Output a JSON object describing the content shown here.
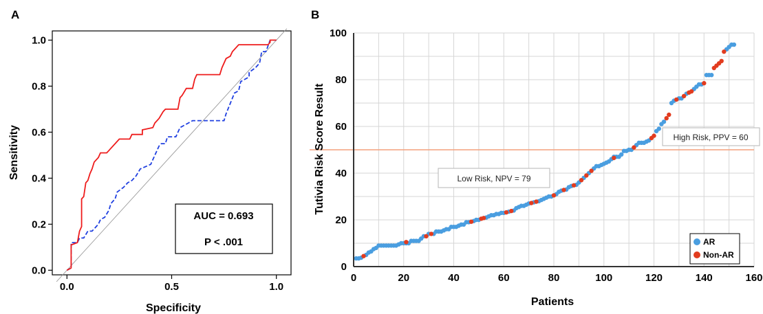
{
  "chart_data": [
    {
      "panel": "A",
      "type": "line",
      "xlabel": "Specificity",
      "ylabel": "Sensitivity",
      "xlim": [
        -0.07,
        1.07
      ],
      "ylim": [
        -0.02,
        1.04
      ],
      "x_ticks": [
        "0.0",
        "0.5",
        "1.0"
      ],
      "y_ticks": [
        "0.0",
        "0.2",
        "0.4",
        "0.6",
        "0.8",
        "1.0"
      ],
      "colors": {
        "solid": "#ee1c1c",
        "dashed": "#1f3fe0",
        "diagonal": "#9a9a9a"
      },
      "annotation_box": {
        "auc": "AUC = 0.693",
        "p": "P < .001"
      },
      "series": [
        {
          "style": "solid",
          "points": [
            [
              0,
              0
            ],
            [
              0.02,
              0.01
            ],
            [
              0.02,
              0.11
            ],
            [
              0.05,
              0.12
            ],
            [
              0.06,
              0.17
            ],
            [
              0.07,
              0.19
            ],
            [
              0.07,
              0.31
            ],
            [
              0.08,
              0.32
            ],
            [
              0.09,
              0.38
            ],
            [
              0.1,
              0.39
            ],
            [
              0.11,
              0.42
            ],
            [
              0.12,
              0.44
            ],
            [
              0.13,
              0.47
            ],
            [
              0.15,
              0.49
            ],
            [
              0.16,
              0.51
            ],
            [
              0.19,
              0.51
            ],
            [
              0.2,
              0.52
            ],
            [
              0.21,
              0.53
            ],
            [
              0.23,
              0.55
            ],
            [
              0.25,
              0.57
            ],
            [
              0.3,
              0.57
            ],
            [
              0.31,
              0.59
            ],
            [
              0.36,
              0.59
            ],
            [
              0.36,
              0.61
            ],
            [
              0.41,
              0.62
            ],
            [
              0.42,
              0.64
            ],
            [
              0.44,
              0.66
            ],
            [
              0.46,
              0.69
            ],
            [
              0.47,
              0.7
            ],
            [
              0.53,
              0.7
            ],
            [
              0.54,
              0.75
            ],
            [
              0.55,
              0.76
            ],
            [
              0.57,
              0.79
            ],
            [
              0.6,
              0.79
            ],
            [
              0.61,
              0.83
            ],
            [
              0.62,
              0.85
            ],
            [
              0.73,
              0.85
            ],
            [
              0.74,
              0.88
            ],
            [
              0.76,
              0.92
            ],
            [
              0.78,
              0.93
            ],
            [
              0.79,
              0.95
            ],
            [
              0.82,
              0.98
            ],
            [
              0.96,
              0.98
            ],
            [
              0.97,
              0.99
            ],
            [
              0.97,
              1.0
            ],
            [
              1.0,
              1.0
            ]
          ]
        },
        {
          "style": "dashed",
          "points": [
            [
              0,
              0
            ],
            [
              0.02,
              0.01
            ],
            [
              0.02,
              0.12
            ],
            [
              0.05,
              0.12
            ],
            [
              0.06,
              0.14
            ],
            [
              0.08,
              0.14
            ],
            [
              0.1,
              0.17
            ],
            [
              0.12,
              0.17
            ],
            [
              0.15,
              0.2
            ],
            [
              0.16,
              0.22
            ],
            [
              0.18,
              0.23
            ],
            [
              0.2,
              0.26
            ],
            [
              0.21,
              0.29
            ],
            [
              0.23,
              0.31
            ],
            [
              0.24,
              0.34
            ],
            [
              0.27,
              0.36
            ],
            [
              0.29,
              0.38
            ],
            [
              0.31,
              0.39
            ],
            [
              0.33,
              0.41
            ],
            [
              0.35,
              0.44
            ],
            [
              0.4,
              0.46
            ],
            [
              0.42,
              0.5
            ],
            [
              0.44,
              0.54
            ],
            [
              0.45,
              0.55
            ],
            [
              0.47,
              0.55
            ],
            [
              0.48,
              0.58
            ],
            [
              0.52,
              0.58
            ],
            [
              0.54,
              0.62
            ],
            [
              0.56,
              0.63
            ],
            [
              0.58,
              0.64
            ],
            [
              0.6,
              0.65
            ],
            [
              0.64,
              0.65
            ],
            [
              0.75,
              0.65
            ],
            [
              0.76,
              0.68
            ],
            [
              0.8,
              0.77
            ],
            [
              0.82,
              0.78
            ],
            [
              0.83,
              0.82
            ],
            [
              0.87,
              0.84
            ],
            [
              0.87,
              0.86
            ],
            [
              0.9,
              0.88
            ],
            [
              0.92,
              0.9
            ],
            [
              0.93,
              0.95
            ],
            [
              0.95,
              0.95
            ],
            [
              0.97,
              1.0
            ],
            [
              1.0,
              1.0
            ]
          ]
        },
        {
          "style": "diagonal",
          "points": [
            [
              -0.05,
              -0.05
            ],
            [
              1.05,
              1.05
            ]
          ]
        }
      ]
    },
    {
      "panel": "B",
      "type": "scatter",
      "xlabel": "Patients",
      "ylabel": "Tutivia Risk Score Result",
      "xlim": [
        0,
        160
      ],
      "ylim": [
        0,
        100
      ],
      "x_ticks": [
        0,
        20,
        40,
        60,
        80,
        100,
        120,
        140,
        160
      ],
      "y_ticks": [
        0,
        20,
        40,
        60,
        80,
        100
      ],
      "threshold": 50,
      "threshold_color": "#f3a07c",
      "colors": {
        "AR": "#4a9ee0",
        "Non-AR": "#e23c1f"
      },
      "legend": {
        "position": "bottom-right",
        "entries": [
          "AR",
          "Non-AR"
        ]
      },
      "annotations": {
        "high_risk": "High Risk, PPV = 60",
        "low_risk": "Low Risk, NPV = 79"
      },
      "series": [
        {
          "name": "AR",
          "points": [
            [
              1,
              3.5
            ],
            [
              2,
              3.5
            ],
            [
              3,
              3.8
            ],
            [
              5,
              5
            ],
            [
              6,
              6
            ],
            [
              7,
              6.5
            ],
            [
              8,
              7.5
            ],
            [
              9,
              8
            ],
            [
              10,
              9
            ],
            [
              11,
              9
            ],
            [
              12,
              9
            ],
            [
              13,
              9
            ],
            [
              14,
              9
            ],
            [
              15,
              9
            ],
            [
              16,
              9
            ],
            [
              17,
              9
            ],
            [
              18,
              9.5
            ],
            [
              19,
              10
            ],
            [
              20,
              10
            ],
            [
              21,
              10
            ],
            [
              22,
              10
            ],
            [
              23,
              11
            ],
            [
              24,
              11
            ],
            [
              25,
              11
            ],
            [
              26,
              11
            ],
            [
              27,
              12
            ],
            [
              28,
              13
            ],
            [
              30,
              14
            ],
            [
              32,
              14
            ],
            [
              33,
              15
            ],
            [
              34,
              15
            ],
            [
              35,
              15
            ],
            [
              36,
              15.5
            ],
            [
              37,
              16
            ],
            [
              38,
              16
            ],
            [
              39,
              17
            ],
            [
              40,
              17
            ],
            [
              41,
              17
            ],
            [
              42,
              17.5
            ],
            [
              43,
              18
            ],
            [
              44,
              18
            ],
            [
              45,
              19
            ],
            [
              46,
              19
            ],
            [
              48,
              19.5
            ],
            [
              49,
              20
            ],
            [
              50,
              20
            ],
            [
              53,
              21
            ],
            [
              54,
              21.5
            ],
            [
              55,
              22
            ],
            [
              56,
              22
            ],
            [
              57,
              22.5
            ],
            [
              58,
              22.5
            ],
            [
              59,
              23
            ],
            [
              60,
              23
            ],
            [
              62,
              23.5
            ],
            [
              64,
              24
            ],
            [
              65,
              25
            ],
            [
              66,
              25.5
            ],
            [
              67,
              26
            ],
            [
              68,
              26
            ],
            [
              69,
              26.5
            ],
            [
              70,
              27
            ],
            [
              72,
              27.5
            ],
            [
              74,
              28
            ],
            [
              75,
              28.5
            ],
            [
              76,
              29
            ],
            [
              77,
              29.5
            ],
            [
              78,
              30
            ],
            [
              79,
              30
            ],
            [
              81,
              31
            ],
            [
              82,
              32
            ],
            [
              83,
              32.5
            ],
            [
              85,
              33
            ],
            [
              86,
              34
            ],
            [
              87,
              34.5
            ],
            [
              89,
              35
            ],
            [
              90,
              36
            ],
            [
              92,
              38
            ],
            [
              94,
              40
            ],
            [
              96,
              42
            ],
            [
              97,
              43
            ],
            [
              98,
              43
            ],
            [
              99,
              43.5
            ],
            [
              100,
              44
            ],
            [
              101,
              44.5
            ],
            [
              102,
              45
            ],
            [
              103,
              46
            ],
            [
              104,
              47
            ],
            [
              105,
              47
            ],
            [
              106,
              47
            ],
            [
              107,
              48
            ],
            [
              108,
              49.5
            ],
            [
              109,
              49.5
            ],
            [
              110,
              50
            ],
            [
              111,
              50
            ],
            [
              113,
              52
            ],
            [
              114,
              53
            ],
            [
              115,
              53
            ],
            [
              116,
              53
            ],
            [
              117,
              53.5
            ],
            [
              118,
              54
            ],
            [
              121,
              58
            ],
            [
              122,
              59
            ],
            [
              123,
              61
            ],
            [
              124,
              62
            ],
            [
              127,
              70
            ],
            [
              128,
              71
            ],
            [
              130,
              72
            ],
            [
              131,
              72
            ],
            [
              133,
              74
            ],
            [
              136,
              76
            ],
            [
              137,
              77
            ],
            [
              138,
              78
            ],
            [
              139,
              78
            ],
            [
              141,
              82
            ],
            [
              142,
              82
            ],
            [
              143,
              82
            ],
            [
              149,
              93
            ],
            [
              150,
              94
            ],
            [
              151,
              95
            ],
            [
              152,
              95
            ]
          ]
        },
        {
          "name": "Non-AR",
          "points": [
            [
              4,
              4.5
            ],
            [
              21,
              10.5
            ],
            [
              29,
              13
            ],
            [
              31,
              14
            ],
            [
              47,
              19.2
            ],
            [
              51,
              20.5
            ],
            [
              52,
              20.8
            ],
            [
              61,
              23.2
            ],
            [
              63,
              23.8
            ],
            [
              71,
              27.2
            ],
            [
              73,
              27.8
            ],
            [
              80,
              30.5
            ],
            [
              84,
              32.8
            ],
            [
              88,
              34.8
            ],
            [
              91,
              37
            ],
            [
              93,
              39
            ],
            [
              95,
              41
            ],
            [
              104,
              46.5
            ],
            [
              112,
              51
            ],
            [
              119,
              55
            ],
            [
              120,
              56
            ],
            [
              125,
              63.5
            ],
            [
              126,
              65
            ],
            [
              129,
              71.5
            ],
            [
              132,
              73
            ],
            [
              134,
              74.5
            ],
            [
              135,
              75
            ],
            [
              140,
              78.5
            ],
            [
              144,
              85
            ],
            [
              145,
              86
            ],
            [
              146,
              87
            ],
            [
              147,
              88
            ],
            [
              148,
              92
            ]
          ]
        }
      ]
    }
  ]
}
